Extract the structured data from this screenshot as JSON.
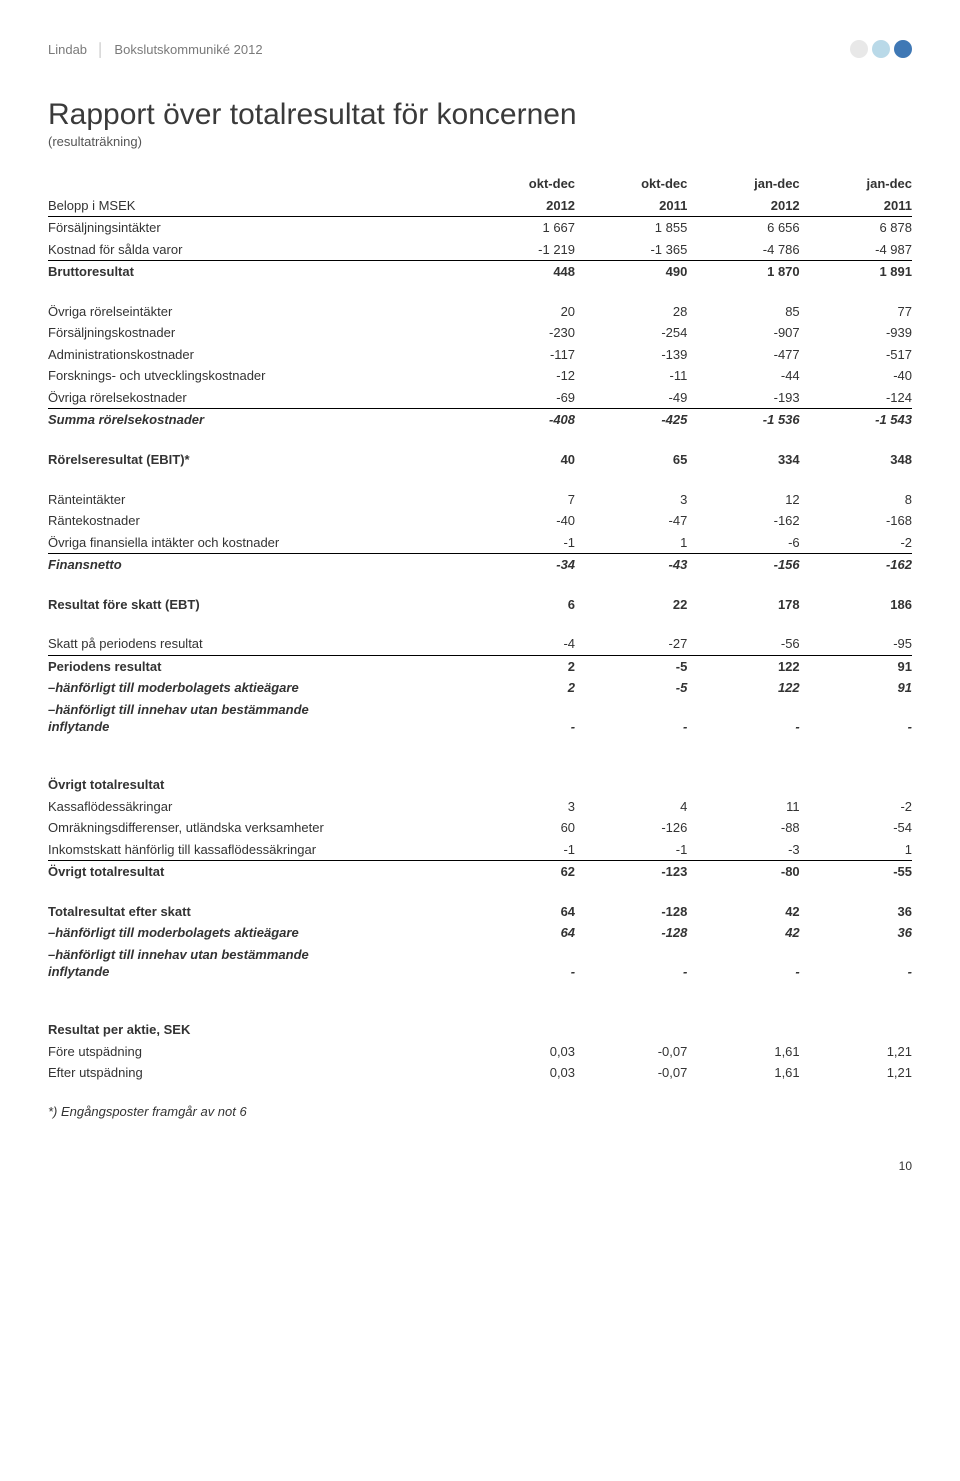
{
  "header": {
    "company": "Lindab",
    "separator": "│",
    "doc": "Bokslutskommuniké 2012"
  },
  "dots": {
    "colors": [
      "#e8e8e8",
      "#b9d9e8",
      "#3f78b5"
    ]
  },
  "title": "Rapport över totalresultat för koncernen",
  "subtitle": "(resultaträkning)",
  "columns": {
    "row_label": "Belopp i MSEK",
    "periods": [
      "okt-dec",
      "okt-dec",
      "jan-dec",
      "jan-dec"
    ],
    "years": [
      "2012",
      "2011",
      "2012",
      "2011"
    ]
  },
  "sections": [
    {
      "rows": [
        {
          "label": "Försäljningsintäkter",
          "v": [
            "1 667",
            "1 855",
            "6 656",
            "6 878"
          ]
        },
        {
          "label": "Kostnad för sålda varor",
          "v": [
            "-1 219",
            "-1 365",
            "-4 786",
            "-4 987"
          ],
          "borderBottom": true
        },
        {
          "label": "Bruttoresultat",
          "v": [
            "448",
            "490",
            "1 870",
            "1 891"
          ],
          "bold": true
        }
      ]
    },
    {
      "rows": [
        {
          "label": "Övriga rörelseintäkter",
          "v": [
            "20",
            "28",
            "85",
            "77"
          ]
        },
        {
          "label": "Försäljningskostnader",
          "v": [
            "-230",
            "-254",
            "-907",
            "-939"
          ]
        },
        {
          "label": "Administrationskostnader",
          "v": [
            "-117",
            "-139",
            "-477",
            "-517"
          ]
        },
        {
          "label": "Forsknings- och utvecklingskostnader",
          "v": [
            "-12",
            "-11",
            "-44",
            "-40"
          ]
        },
        {
          "label": "Övriga rörelsekostnader",
          "v": [
            "-69",
            "-49",
            "-193",
            "-124"
          ],
          "borderBottom": true
        },
        {
          "label": "Summa rörelsekostnader",
          "v": [
            "-408",
            "-425",
            "-1 536",
            "-1 543"
          ],
          "bold": true,
          "ital": true
        }
      ]
    },
    {
      "rows": [
        {
          "label": "Rörelseresultat (EBIT)*",
          "v": [
            "40",
            "65",
            "334",
            "348"
          ],
          "bold": true
        }
      ]
    },
    {
      "rows": [
        {
          "label": "Ränteintäkter",
          "v": [
            "7",
            "3",
            "12",
            "8"
          ]
        },
        {
          "label": "Räntekostnader",
          "v": [
            "-40",
            "-47",
            "-162",
            "-168"
          ]
        },
        {
          "label": "Övriga finansiella intäkter och kostnader",
          "v": [
            "-1",
            "1",
            "-6",
            "-2"
          ],
          "borderBottom": true
        },
        {
          "label": "Finansnetto",
          "v": [
            "-34",
            "-43",
            "-156",
            "-162"
          ],
          "bold": true,
          "ital": true
        }
      ]
    },
    {
      "rows": [
        {
          "label": "Resultat före skatt (EBT)",
          "v": [
            "6",
            "22",
            "178",
            "186"
          ],
          "bold": true
        }
      ]
    },
    {
      "rows": [
        {
          "label": "Skatt på periodens resultat",
          "v": [
            "-4",
            "-27",
            "-56",
            "-95"
          ],
          "borderBottom": true
        },
        {
          "label": "Periodens resultat",
          "v": [
            "2",
            "-5",
            "122",
            "91"
          ],
          "bold": true
        },
        {
          "label": "–hänförligt till moderbolagets aktieägare",
          "v": [
            "2",
            "-5",
            "122",
            "91"
          ],
          "bold": true,
          "ital": true,
          "indent": true
        },
        {
          "label": "–hänförligt till innehav utan bestämmande inflytande",
          "v": [
            "-",
            "-",
            "-",
            "-"
          ],
          "bold": true,
          "ital": true,
          "indent": true,
          "wrap": true
        }
      ]
    },
    {
      "rows": [
        {
          "label": "Övrigt totalresultat",
          "v": [
            "",
            "",
            "",
            ""
          ],
          "bold": true
        },
        {
          "label": "Kassaflödessäkringar",
          "v": [
            "3",
            "4",
            "11",
            "-2"
          ]
        },
        {
          "label": "Omräkningsdifferenser, utländska verksamheter",
          "v": [
            "60",
            "-126",
            "-88",
            "-54"
          ]
        },
        {
          "label": "Inkomstskatt hänförlig till kassaflödessäkringar",
          "v": [
            "-1",
            "-1",
            "-3",
            "1"
          ],
          "borderBottom": true
        },
        {
          "label": "Övrigt totalresultat",
          "v": [
            "62",
            "-123",
            "-80",
            "-55"
          ],
          "bold": true
        }
      ]
    },
    {
      "rows": [
        {
          "label": "Totalresultat efter skatt",
          "v": [
            "64",
            "-128",
            "42",
            "36"
          ],
          "bold": true
        },
        {
          "label": "–hänförligt till moderbolagets aktieägare",
          "v": [
            "64",
            "-128",
            "42",
            "36"
          ],
          "bold": true,
          "ital": true,
          "indent": true
        },
        {
          "label": "–hänförligt till innehav utan bestämmande inflytande",
          "v": [
            "-",
            "-",
            "-",
            "-"
          ],
          "bold": true,
          "ital": true,
          "indent": true,
          "wrap": true
        }
      ]
    },
    {
      "rows": [
        {
          "label": "Resultat per aktie, SEK",
          "v": [
            "",
            "",
            "",
            ""
          ],
          "bold": true
        },
        {
          "label": "Före utspädning",
          "v": [
            "0,03",
            "-0,07",
            "1,61",
            "1,21"
          ]
        },
        {
          "label": "Efter utspädning",
          "v": [
            "0,03",
            "-0,07",
            "1,61",
            "1,21"
          ]
        }
      ]
    }
  ],
  "sectionGaps": [
    18,
    18,
    18,
    18,
    18,
    36,
    18,
    36
  ],
  "footnote": "*) Engångsposter framgår av not 6",
  "pageNumber": "10"
}
